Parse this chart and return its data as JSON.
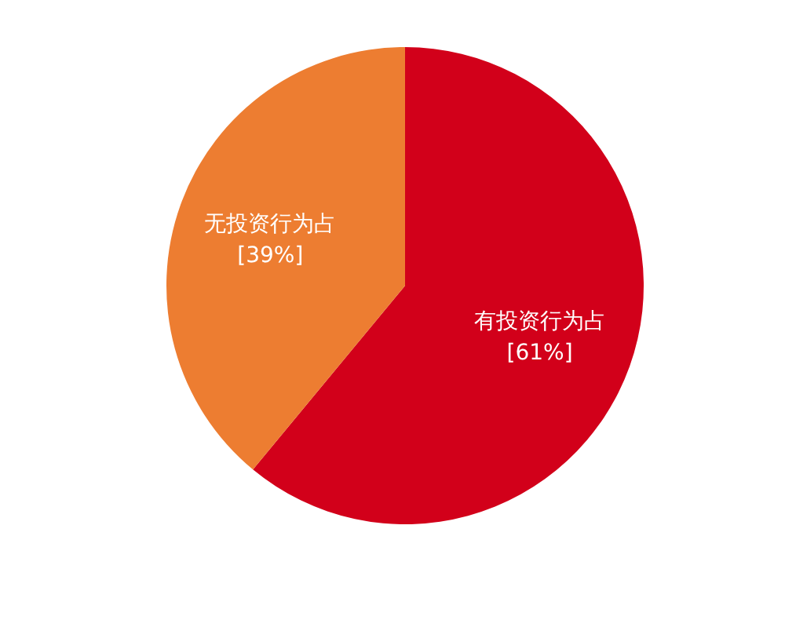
{
  "chart_data": {
    "type": "pie",
    "categories": [
      "有投资行为占",
      "无投资行为占"
    ],
    "values": [
      61,
      39
    ],
    "value_labels": [
      "[61%]",
      "[39%]"
    ],
    "colors": [
      "#d2001a",
      "#ed7d31"
    ],
    "legend": false
  }
}
